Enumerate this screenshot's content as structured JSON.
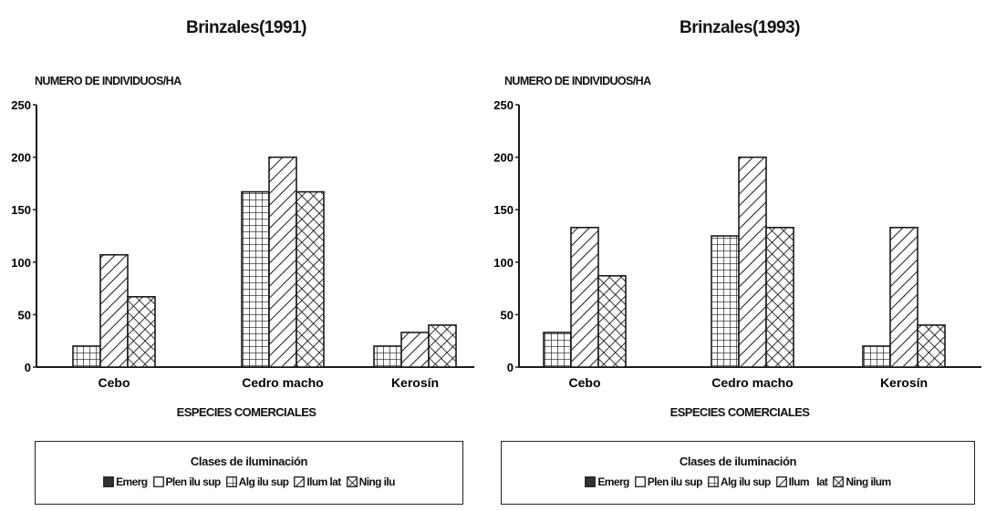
{
  "chart_data": [
    {
      "type": "bar",
      "title": "Brinzales(1991)",
      "ylabel": "NUMERO DE INDIVIDUOS/HA",
      "xlabel": "ESPECIES COMERCIALES",
      "categories": [
        "Cebo",
        "Cedro macho",
        "Kerosín"
      ],
      "ylim": [
        0,
        250
      ],
      "yticks": [
        "0",
        "50",
        "100",
        "150",
        "200",
        "250"
      ],
      "series": [
        {
          "name": "Emerg",
          "values": [
            0,
            0,
            0
          ]
        },
        {
          "name": "Plen ilu sup",
          "values": [
            0,
            0,
            0
          ]
        },
        {
          "name": "Alg ilu sup",
          "values": [
            20,
            167,
            20
          ]
        },
        {
          "name": "Ilum lat",
          "values": [
            107,
            200,
            33
          ]
        },
        {
          "name": "Ning ilu",
          "values": [
            67,
            167,
            40
          ]
        }
      ],
      "legend_title": "Clases de iluminación",
      "legend_labels": [
        "Emerg",
        "Plen ilu sup",
        "Alg ilu sup",
        "Ilum lat",
        "Ning ilu"
      ],
      "grid": false,
      "legend_position": "bottom"
    },
    {
      "type": "bar",
      "title": "Brinzales(1993)",
      "ylabel": "NUMERO DE INDIVIDUOS/HA",
      "xlabel": "ESPECIES COMERCIALES",
      "categories": [
        "Cebo",
        "Cedro macho",
        "Kerosín"
      ],
      "ylim": [
        0,
        250
      ],
      "yticks": [
        "0",
        "50",
        "100",
        "150",
        "200",
        "250"
      ],
      "series": [
        {
          "name": "Emerg",
          "values": [
            0,
            0,
            0
          ]
        },
        {
          "name": "Plen ilu sup",
          "values": [
            0,
            0,
            0
          ]
        },
        {
          "name": "Alg ilu sup",
          "values": [
            33,
            125,
            20
          ]
        },
        {
          "name": "Ilum lat",
          "values": [
            133,
            200,
            133
          ]
        },
        {
          "name": "Ning ilu",
          "values": [
            87,
            133,
            40
          ]
        }
      ],
      "legend_title": "Clases de iluminación",
      "legend_labels": [
        "Emerg",
        "Plen ilu sup",
        "Alg ilu sup",
        "Ilum   lat",
        "Ning ilum"
      ],
      "grid": false,
      "legend_position": "bottom"
    }
  ],
  "patterns": {
    "Emerg": "solid-dark",
    "Plen ilu sup": "empty",
    "Alg ilu sup": "grid",
    "Ilum lat": "diagonal",
    "Ning ilu": "crosshatch"
  },
  "colors": {
    "ink": "#1a1a1a",
    "background": "#ffffff"
  }
}
